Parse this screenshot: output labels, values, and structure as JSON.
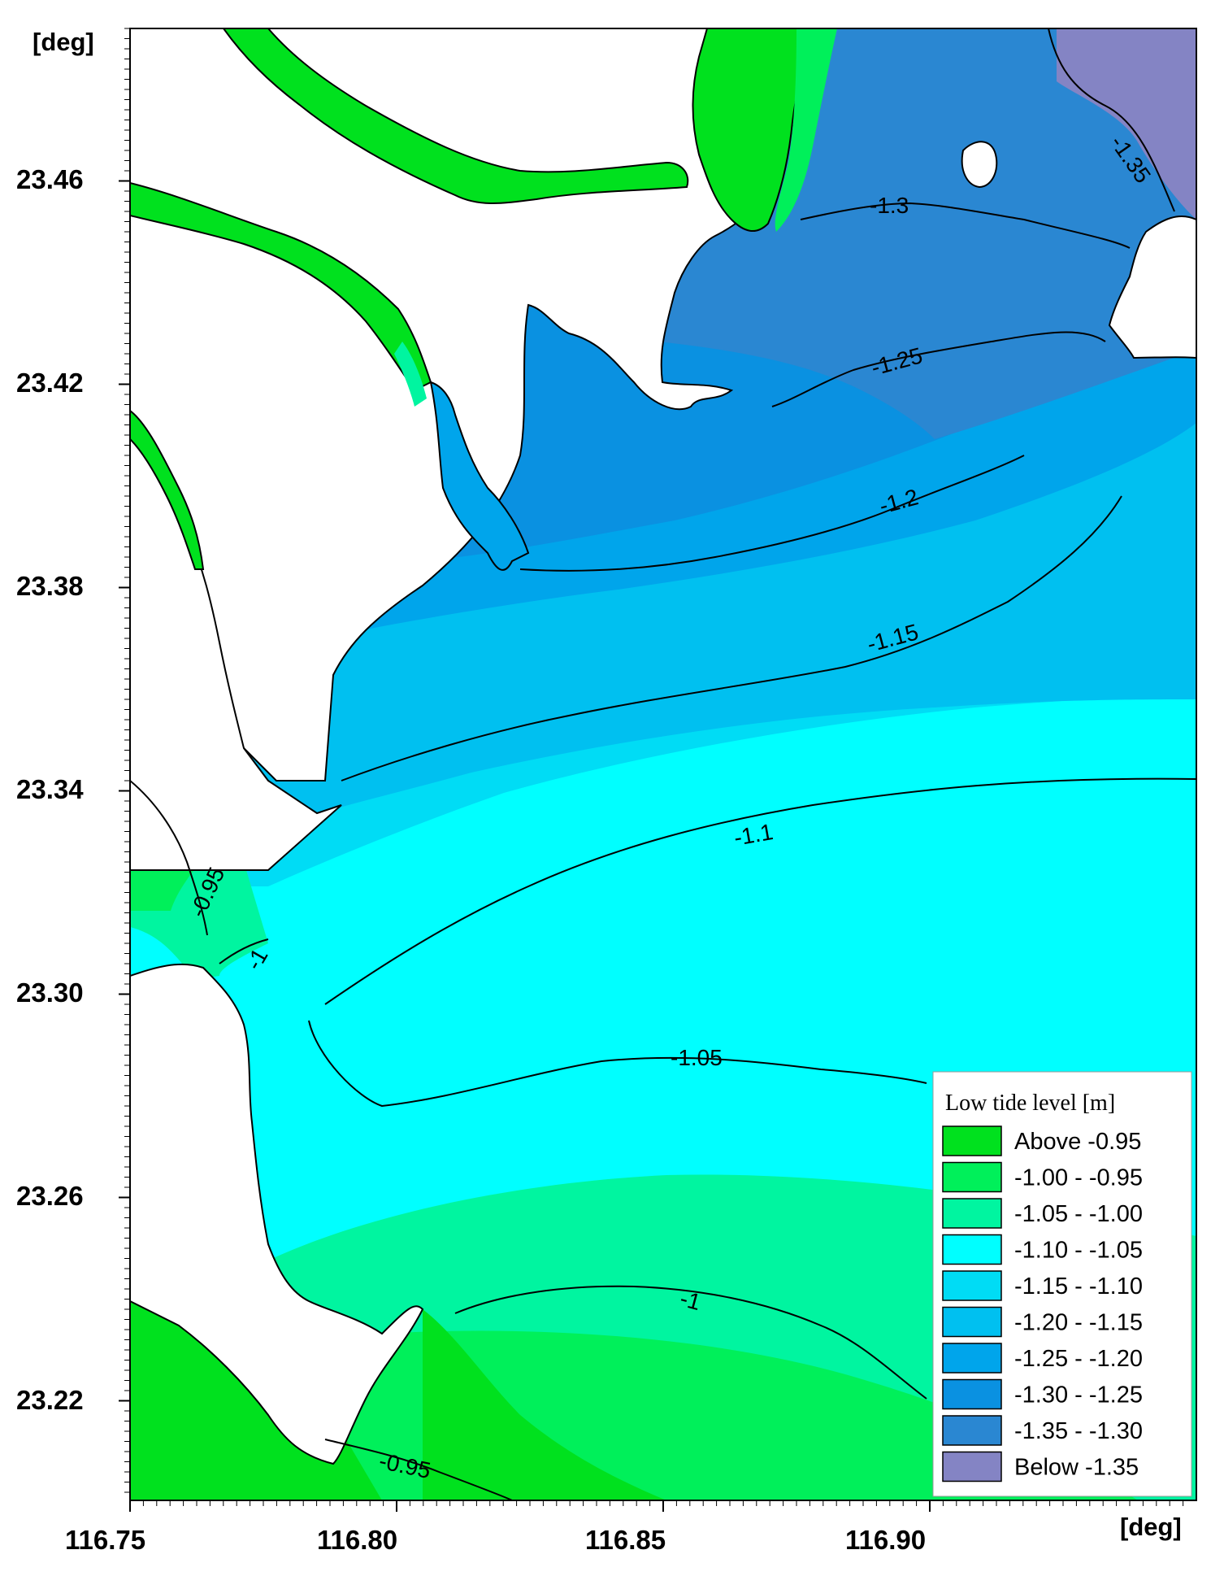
{
  "map": {
    "axis_unit_y": "[deg]",
    "axis_unit_x": "[deg]",
    "y_ticks": [
      "23.46",
      "23.42",
      "23.38",
      "23.34",
      "23.30",
      "23.26",
      "23.22"
    ],
    "x_ticks": [
      "116.75",
      "116.80",
      "116.85",
      "116.90"
    ],
    "contour_labels": [
      "-1.35",
      "-1.3",
      "-1.25",
      "-1.2",
      "-1.15",
      "-1.1",
      "-1.05",
      "-1",
      "-0.95",
      "-1",
      "-0.95"
    ]
  },
  "legend": {
    "title": "Low tide level [m]",
    "entries": [
      {
        "label": "Above  -0.95",
        "color": "#00e11e"
      },
      {
        "label": "-1.00 - -0.95",
        "color": "#00f05a"
      },
      {
        "label": "-1.05 - -1.00",
        "color": "#00f5a0"
      },
      {
        "label": "-1.10 - -1.05",
        "color": "#00ffff"
      },
      {
        "label": "-1.15 - -1.10",
        "color": "#00dcf5"
      },
      {
        "label": "-1.20 - -1.15",
        "color": "#00c0f0"
      },
      {
        "label": "-1.25 - -1.20",
        "color": "#00a5eb"
      },
      {
        "label": "-1.30 - -1.25",
        "color": "#0a91e1"
      },
      {
        "label": "-1.35 - -1.30",
        "color": "#2a87d2"
      },
      {
        "label": "Below  -1.35",
        "color": "#8484c4"
      }
    ]
  }
}
